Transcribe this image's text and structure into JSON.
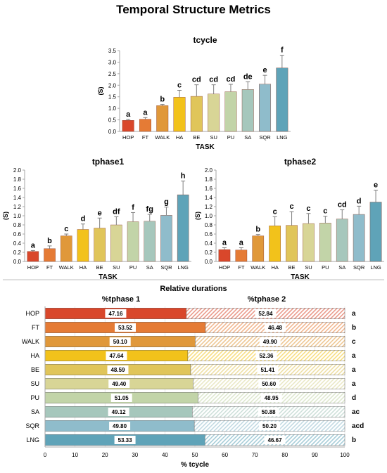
{
  "figure": {
    "title": "Temporal Structure Metrics"
  },
  "chart_data": [
    {
      "type": "bar",
      "title": "tcycle",
      "xlabel": "TASK",
      "ylabel": "(S)",
      "ylim": [
        0,
        3.5
      ],
      "yticks": [
        "0.0",
        "0.5",
        "1.0",
        "1.5",
        "2.0",
        "2.5",
        "3.0",
        "3.5"
      ],
      "categories": [
        "HOP",
        "FT",
        "WALK",
        "HA",
        "BE",
        "SU",
        "PU",
        "SA",
        "SQR",
        "LNG"
      ],
      "values": [
        0.48,
        0.53,
        1.12,
        1.48,
        1.52,
        1.62,
        1.72,
        1.82,
        2.05,
        2.75
      ],
      "errors": [
        0.04,
        0.07,
        0.05,
        0.3,
        0.5,
        0.4,
        0.32,
        0.33,
        0.38,
        0.55
      ],
      "letters": [
        "a",
        "a",
        "b",
        "c",
        "cd",
        "cd",
        "cd",
        "de",
        "e",
        "f"
      ]
    },
    {
      "type": "bar",
      "title": "tphase1",
      "xlabel": "TASK",
      "ylabel": "(S)",
      "ylim": [
        0,
        2.0
      ],
      "yticks": [
        "0.0",
        "0.2",
        "0.4",
        "0.6",
        "0.8",
        "1.0",
        "1.2",
        "1.4",
        "1.6",
        "1.8",
        "2.0"
      ],
      "categories": [
        "HOP",
        "FT",
        "WALK",
        "HA",
        "BE",
        "SU",
        "PU",
        "SA",
        "SQR",
        "LNG"
      ],
      "values": [
        0.22,
        0.28,
        0.56,
        0.7,
        0.73,
        0.8,
        0.87,
        0.88,
        1.01,
        1.46
      ],
      "errors": [
        0.02,
        0.06,
        0.04,
        0.12,
        0.22,
        0.18,
        0.2,
        0.15,
        0.18,
        0.3
      ],
      "letters": [
        "a",
        "b",
        "c",
        "d",
        "e",
        "df",
        "f",
        "fg",
        "g",
        "h"
      ]
    },
    {
      "type": "bar",
      "title": "tphase2",
      "xlabel": "TASK",
      "ylabel": "(S)",
      "ylim": [
        0,
        2.0
      ],
      "yticks": [
        "0.0",
        "0.2",
        "0.4",
        "0.6",
        "0.8",
        "1.0",
        "1.2",
        "1.4",
        "1.6",
        "1.8",
        "2.0"
      ],
      "categories": [
        "HOP",
        "FT",
        "WALK",
        "HA",
        "BE",
        "SU",
        "PU",
        "SA",
        "SQR",
        "LNG"
      ],
      "values": [
        0.26,
        0.25,
        0.56,
        0.78,
        0.79,
        0.83,
        0.84,
        0.93,
        1.03,
        1.3
      ],
      "errors": [
        0.04,
        0.05,
        0.03,
        0.2,
        0.3,
        0.22,
        0.15,
        0.2,
        0.18,
        0.26
      ],
      "letters": [
        "a",
        "a",
        "b",
        "c",
        "c",
        "c",
        "c",
        "cd",
        "d",
        "e"
      ]
    },
    {
      "type": "bar",
      "stacked": true,
      "orientation": "horizontal",
      "title": "Relative durations",
      "xlabel": "% tcycle",
      "xlim": [
        0,
        100
      ],
      "xticks": [
        "0",
        "10",
        "20",
        "30",
        "40",
        "50",
        "60",
        "70",
        "80",
        "90",
        "100"
      ],
      "categories": [
        "HOP",
        "FT",
        "WALK",
        "HA",
        "BE",
        "SU",
        "PU",
        "SA",
        "SQR",
        "LNG"
      ],
      "series": [
        {
          "name": "%tphase 1",
          "values": [
            47.16,
            53.52,
            50.1,
            47.64,
            48.59,
            49.4,
            51.05,
            49.12,
            49.8,
            53.33
          ],
          "labels": [
            "47.16",
            "53.52",
            "50.10",
            "47.64",
            "48.59",
            "49.40",
            "51.05",
            "49.12",
            "49.80",
            "53.33"
          ]
        },
        {
          "name": "%tphase 2",
          "values": [
            52.84,
            46.48,
            49.9,
            52.36,
            51.41,
            50.6,
            48.95,
            50.88,
            50.2,
            46.67
          ],
          "labels": [
            "52.84",
            "46.48",
            "49.90",
            "52.36",
            "51.41",
            "50.60",
            "48.95",
            "50.88",
            "50.20",
            "46.67"
          ]
        }
      ],
      "letters": [
        "a",
        "b",
        "c",
        "a",
        "a",
        "a",
        "d",
        "ac",
        "acd",
        "b"
      ]
    }
  ],
  "colors": {
    "HOP": "#d9472b",
    "FT": "#e57b35",
    "WALK": "#e0983a",
    "HA": "#f2c21b",
    "BE": "#e0c55a",
    "SU": "#d8d596",
    "PU": "#c2d4a8",
    "SA": "#a6c7bc",
    "SQR": "#8fbccb",
    "LNG": "#5fa3b8",
    "axis": "#a6a6a6",
    "grid": "#d9d9d9",
    "error": "#7f7f7f"
  }
}
